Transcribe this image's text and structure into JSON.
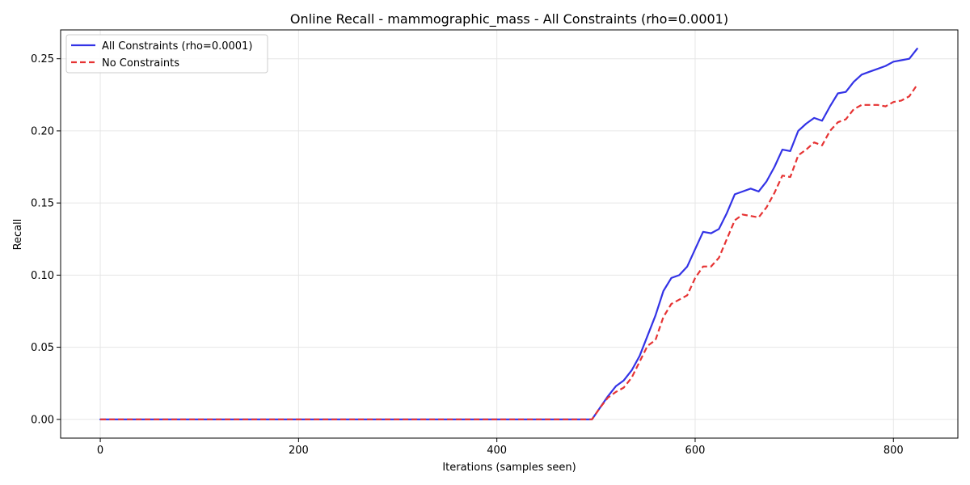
{
  "chart_data": {
    "type": "line",
    "title": "Online Recall - mammographic_mass - All Constraints (rho=0.0001)",
    "xlabel": "Iterations (samples seen)",
    "ylabel": "Recall",
    "xlim": [
      -40,
      865
    ],
    "ylim": [
      -0.013,
      0.27
    ],
    "xticks": [
      0,
      200,
      400,
      600,
      800
    ],
    "xtick_labels": [
      "0",
      "200",
      "400",
      "600",
      "800"
    ],
    "yticks": [
      0.0,
      0.05,
      0.1,
      0.15,
      0.2,
      0.25
    ],
    "ytick_labels": [
      "0.00",
      "0.05",
      "0.10",
      "0.15",
      "0.20",
      "0.25"
    ],
    "grid": true,
    "legend_position": "top-left",
    "series": [
      {
        "name": "All Constraints (rho=0.0001)",
        "color": "#3333e6",
        "dash": "solid",
        "x": [
          0,
          100,
          200,
          300,
          400,
          496,
          504,
          512,
          520,
          528,
          536,
          544,
          552,
          560,
          568,
          576,
          584,
          592,
          600,
          608,
          616,
          624,
          632,
          640,
          648,
          656,
          664,
          672,
          680,
          688,
          696,
          704,
          712,
          720,
          728,
          736,
          744,
          752,
          760,
          768,
          776,
          784,
          792,
          800,
          808,
          816,
          824
        ],
        "y": [
          0.0,
          0.0,
          0.0,
          0.0,
          0.0,
          0.0,
          0.008,
          0.016,
          0.023,
          0.027,
          0.034,
          0.044,
          0.058,
          0.072,
          0.089,
          0.098,
          0.1,
          0.106,
          0.118,
          0.13,
          0.129,
          0.132,
          0.143,
          0.156,
          0.158,
          0.16,
          0.158,
          0.165,
          0.175,
          0.187,
          0.186,
          0.2,
          0.205,
          0.209,
          0.207,
          0.217,
          0.226,
          0.227,
          0.234,
          0.239,
          0.241,
          0.243,
          0.245,
          0.248,
          0.249,
          0.25,
          0.257
        ]
      },
      {
        "name": "No Constraints",
        "color": "#e63333",
        "dash": "dashed",
        "x": [
          0,
          100,
          200,
          300,
          400,
          496,
          504,
          512,
          520,
          528,
          536,
          544,
          552,
          560,
          568,
          576,
          584,
          592,
          600,
          608,
          616,
          624,
          632,
          640,
          648,
          656,
          664,
          672,
          680,
          688,
          696,
          704,
          712,
          720,
          728,
          736,
          744,
          752,
          760,
          768,
          776,
          784,
          792,
          800,
          808,
          816,
          824
        ],
        "y": [
          0.0,
          0.0,
          0.0,
          0.0,
          0.0,
          0.0,
          0.008,
          0.015,
          0.019,
          0.022,
          0.029,
          0.04,
          0.051,
          0.055,
          0.071,
          0.08,
          0.083,
          0.086,
          0.098,
          0.106,
          0.106,
          0.112,
          0.125,
          0.138,
          0.142,
          0.141,
          0.14,
          0.147,
          0.157,
          0.169,
          0.168,
          0.183,
          0.187,
          0.192,
          0.19,
          0.2,
          0.206,
          0.208,
          0.215,
          0.218,
          0.218,
          0.218,
          0.217,
          0.22,
          0.221,
          0.224,
          0.232
        ]
      }
    ]
  }
}
